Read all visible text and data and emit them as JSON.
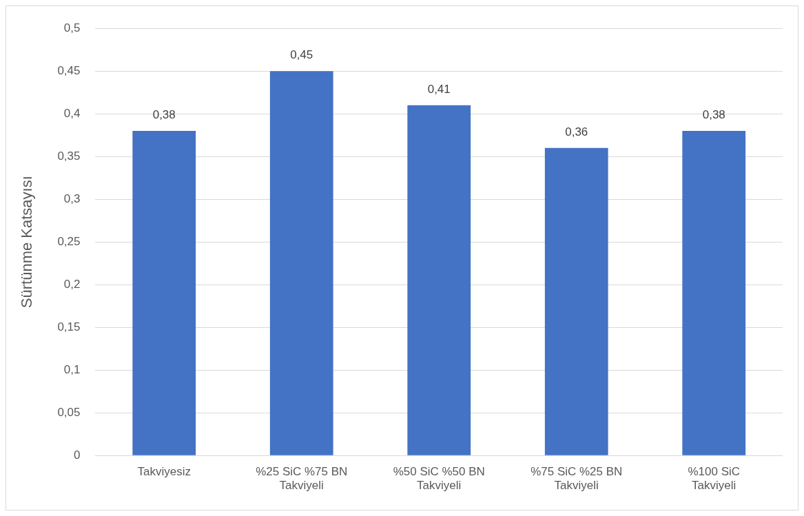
{
  "chart_data": {
    "type": "bar",
    "ylabel": "Sürtünme Katsayısı",
    "categories": [
      "Takviyesiz",
      "%25 SiC %75 BN\nTakviyeli",
      "%50 SiC %50 BN\nTakviyeli",
      "%75 SiC %25 BN\nTakviyeli",
      "%100 SiC\nTakviyeli"
    ],
    "values": [
      0.38,
      0.45,
      0.41,
      0.36,
      0.38
    ],
    "value_labels": [
      "0,38",
      "0,45",
      "0,41",
      "0,36",
      "0,38"
    ],
    "color": "#4472c4",
    "ylim": [
      0,
      0.5
    ],
    "yticks": [
      {
        "value": 0,
        "label": "0"
      },
      {
        "value": 0.05,
        "label": "0,05"
      },
      {
        "value": 0.1,
        "label": "0,1"
      },
      {
        "value": 0.15,
        "label": "0,15"
      },
      {
        "value": 0.2,
        "label": "0,2"
      },
      {
        "value": 0.25,
        "label": "0,25"
      },
      {
        "value": 0.3,
        "label": "0,3"
      },
      {
        "value": 0.35,
        "label": "0,35"
      },
      {
        "value": 0.4,
        "label": "0,4"
      },
      {
        "value": 0.45,
        "label": "0,45"
      },
      {
        "value": 0.5,
        "label": "0,5"
      }
    ],
    "grid": "y",
    "legend": false
  }
}
